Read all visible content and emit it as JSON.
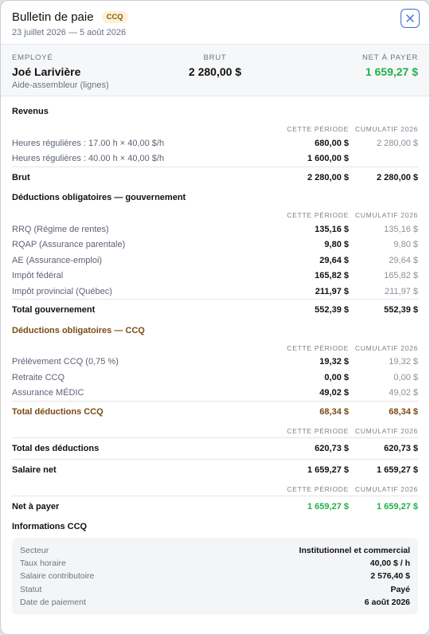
{
  "header": {
    "title": "Bulletin de paie",
    "badge": "CCQ",
    "subtitle": "23 juillet 2026 — 5 août 2026"
  },
  "summary": {
    "employee_label": "EMPLOYÉ",
    "employee_name": "Joé Larivière",
    "employee_role": "Aide-assembleur (lignes)",
    "gross_label": "BRUT",
    "gross": "2 280,00 $",
    "net_label": "NET À PAYER",
    "net": "1 659,27 $",
    "net_color": "#22b04b"
  },
  "sections": [
    {
      "title": "Revenus",
      "columns": [
        "CETTE PÉRIODE",
        "CUMULATIF 2026"
      ],
      "rows": [
        {
          "label": "Heures régulières : 17.00 h × 40,00 $/h",
          "period": "680,00 $",
          "ytd": "2 280,00 $"
        },
        {
          "label": "Heures régulières : 40.00 h × 40,00 $/h",
          "period": "1 600,00 $",
          "ytd": null
        }
      ],
      "totals": [
        {
          "label": "Brut",
          "period": "2 280,00 $",
          "ytd": "2 280,00 $"
        }
      ]
    },
    {
      "title": "Déductions obligatoires — gouvernement",
      "columns": [
        "CETTE PÉRIODE",
        "CUMULATIF 2026"
      ],
      "rows": [
        {
          "label": "RRQ (Régime de rentes)",
          "period": "135,16 $",
          "ytd": "135,16 $"
        },
        {
          "label": "RQAP (Assurance parentale)",
          "period": "9,80 $",
          "ytd": "9,80 $"
        },
        {
          "label": "AE (Assurance-emploi)",
          "period": "29,64 $",
          "ytd": "29,64 $"
        },
        {
          "label": "Impôt fédéral",
          "period": "165,82 $",
          "ytd": "165,82 $"
        },
        {
          "label": "Impôt provincial (Québec)",
          "period": "211,97 $",
          "ytd": "211,97 $"
        }
      ],
      "totals": [
        {
          "label": "Total gouvernement",
          "period": "552,39 $",
          "ytd": "552,39 $"
        }
      ]
    },
    {
      "title": "Déductions obligatoires — CCQ",
      "color": "#7a4a14",
      "columns": [
        "CETTE PÉRIODE",
        "CUMULATIF 2026"
      ],
      "rows": [
        {
          "label": "Prélèvement CCQ (0,75 %)",
          "period": "19,32 $",
          "ytd": "19,32 $"
        },
        {
          "label": "Retraite CCQ",
          "period": "0,00 $",
          "ytd": "0,00 $"
        },
        {
          "label": "Assurance MÉDIC",
          "period": "49,02 $",
          "ytd": "49,02 $"
        }
      ],
      "totals": [
        {
          "label": "Total déductions CCQ",
          "period": "68,34 $",
          "ytd": "68,34 $"
        }
      ]
    },
    {
      "columns": [
        "CETTE PÉRIODE",
        "CUMULATIF 2026"
      ],
      "rows": [],
      "totals": [
        {
          "label": "Total des déductions",
          "period": "620,73 $",
          "ytd": "620,73 $"
        },
        {
          "label": "Salaire net",
          "period": "1 659,27 $",
          "ytd": "1 659,27 $"
        }
      ]
    },
    {
      "columns": [
        "CETTE PÉRIODE",
        "CUMULATIF 2026"
      ],
      "value_color": "#22b04b",
      "rows": [],
      "totals": [
        {
          "label": "Net à payer",
          "period": "1 659,27 $",
          "ytd": "1 659,27 $"
        }
      ]
    }
  ],
  "info": {
    "title": "Informations CCQ",
    "rows": [
      {
        "label": "Secteur",
        "value": "Institutionnel et commercial"
      },
      {
        "label": "Taux horaire",
        "value": "40,00 $ / h"
      },
      {
        "label": "Salaire contributoire",
        "value": "2 576,40 $"
      },
      {
        "label": "Statut",
        "value": "Payé"
      },
      {
        "label": "Date de paiement",
        "value": "6 août 2026"
      }
    ]
  }
}
